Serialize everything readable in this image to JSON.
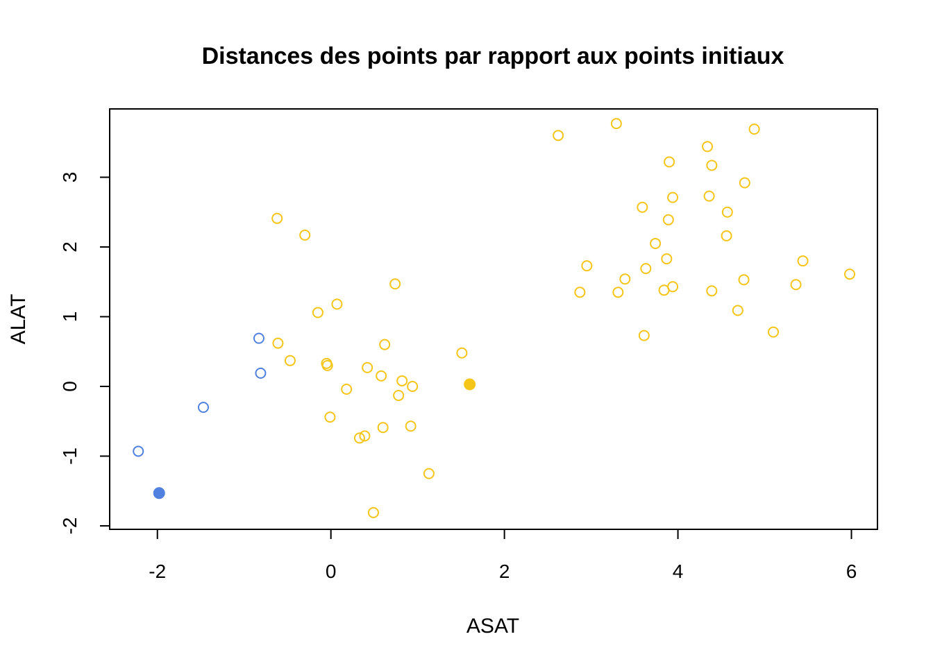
{
  "chart_data": {
    "type": "scatter",
    "title": "Distances des points par rapport aux points initiaux",
    "xlabel": "ASAT",
    "ylabel": "ALAT",
    "xlim": [
      -2.55,
      6.3
    ],
    "ylim": [
      -2.05,
      3.98
    ],
    "x_ticks": [
      -2,
      0,
      2,
      4,
      6
    ],
    "x_tick_labels": [
      "-2",
      "0",
      "2",
      "4",
      "6"
    ],
    "y_ticks": [
      -2,
      -1,
      0,
      1,
      2,
      3
    ],
    "y_tick_labels": [
      "-2",
      "-1",
      "0",
      "1",
      "2",
      "3"
    ],
    "grid": false,
    "series": [
      {
        "color": "#5080E0",
        "marker": "open-circle",
        "points": [
          [
            -0.83,
            0.69
          ],
          [
            -0.81,
            0.19
          ],
          [
            -1.47,
            -0.3
          ],
          [
            -2.22,
            -0.93
          ]
        ]
      },
      {
        "color": "#5080E0",
        "marker": "filled-circle",
        "points": [
          [
            -1.98,
            -1.53
          ]
        ]
      },
      {
        "color": "#F5C518",
        "marker": "open-circle",
        "points": [
          [
            -0.62,
            2.41
          ],
          [
            -0.3,
            2.17
          ],
          [
            0.74,
            1.47
          ],
          [
            -0.15,
            1.06
          ],
          [
            0.07,
            1.18
          ],
          [
            -0.61,
            0.62
          ],
          [
            -0.47,
            0.37
          ],
          [
            -0.05,
            0.33
          ],
          [
            -0.04,
            0.3
          ],
          [
            0.62,
            0.6
          ],
          [
            1.51,
            0.48
          ],
          [
            0.42,
            0.27
          ],
          [
            0.58,
            0.15
          ],
          [
            0.82,
            0.08
          ],
          [
            0.94,
            0.0
          ],
          [
            0.18,
            -0.04
          ],
          [
            0.78,
            -0.13
          ],
          [
            -0.01,
            -0.44
          ],
          [
            0.33,
            -0.74
          ],
          [
            0.39,
            -0.71
          ],
          [
            0.6,
            -0.59
          ],
          [
            0.92,
            -0.57
          ],
          [
            1.13,
            -1.25
          ],
          [
            0.49,
            -1.81
          ],
          [
            2.62,
            3.6
          ],
          [
            3.29,
            3.77
          ],
          [
            4.88,
            3.69
          ],
          [
            4.34,
            3.44
          ],
          [
            3.9,
            3.22
          ],
          [
            4.39,
            3.17
          ],
          [
            4.77,
            2.92
          ],
          [
            3.94,
            2.71
          ],
          [
            4.36,
            2.73
          ],
          [
            3.59,
            2.57
          ],
          [
            4.57,
            2.5
          ],
          [
            3.89,
            2.39
          ],
          [
            4.56,
            2.16
          ],
          [
            3.74,
            2.05
          ],
          [
            2.95,
            1.73
          ],
          [
            3.63,
            1.69
          ],
          [
            3.87,
            1.83
          ],
          [
            3.39,
            1.54
          ],
          [
            5.44,
            1.8
          ],
          [
            5.98,
            1.61
          ],
          [
            4.76,
            1.53
          ],
          [
            5.36,
            1.46
          ],
          [
            3.94,
            1.43
          ],
          [
            3.84,
            1.38
          ],
          [
            4.39,
            1.37
          ],
          [
            2.87,
            1.35
          ],
          [
            3.31,
            1.35
          ],
          [
            4.69,
            1.09
          ],
          [
            5.1,
            0.78
          ],
          [
            3.61,
            0.73
          ]
        ]
      },
      {
        "color": "#F5C518",
        "marker": "filled-circle",
        "points": [
          [
            1.6,
            0.03
          ]
        ]
      }
    ]
  }
}
